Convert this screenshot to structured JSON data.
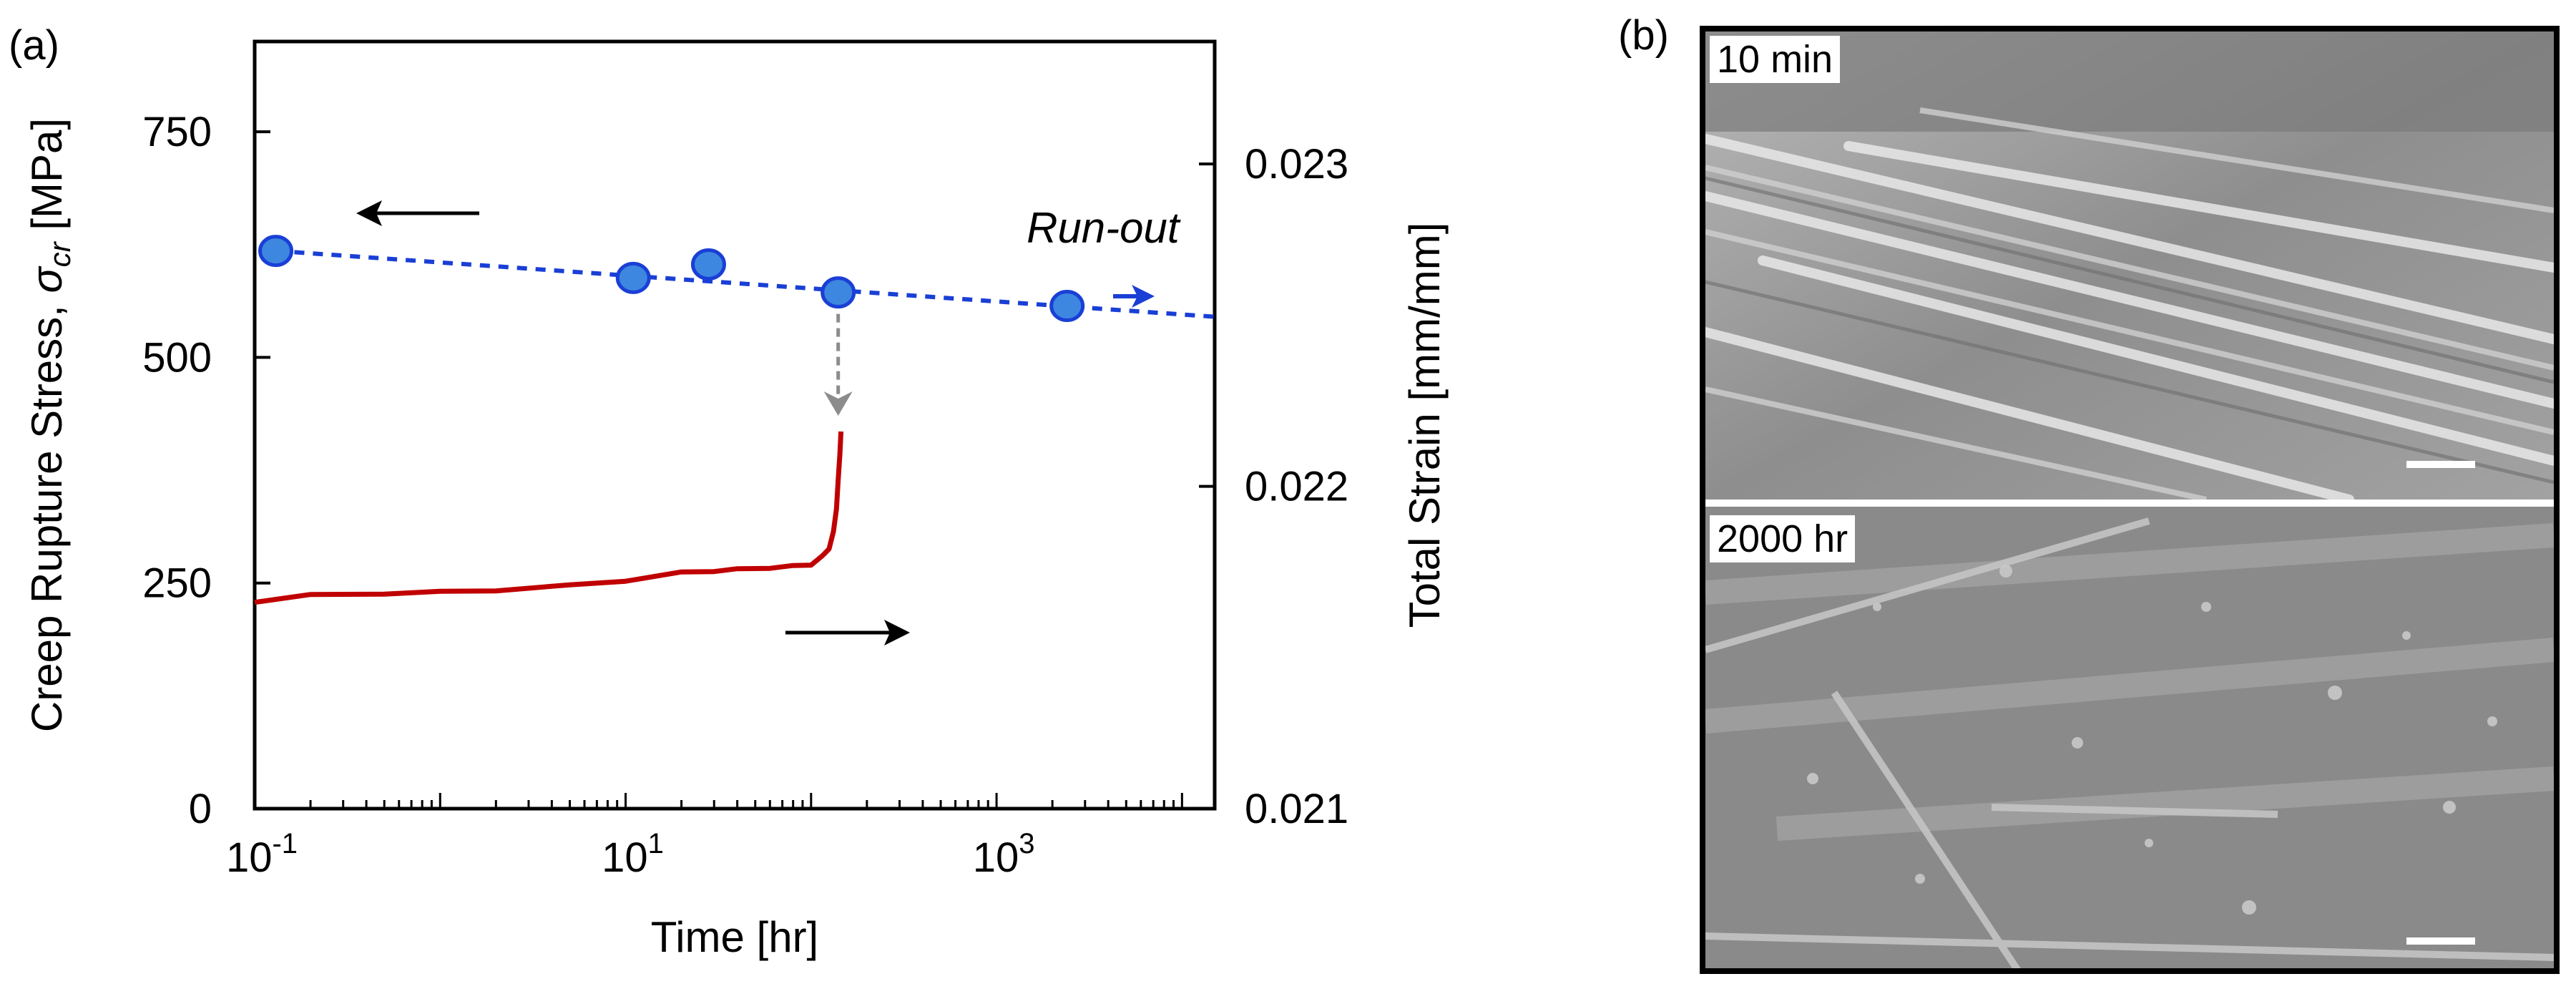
{
  "panel_a_label": "(a)",
  "panel_b_label": "(b)",
  "chart_data": {
    "type": "scatter",
    "title": "",
    "xlabel": "Time [hr]",
    "xscale": "log",
    "xlim": [
      0.1,
      15000
    ],
    "x_ticks": [
      {
        "value": 0.1,
        "base": "10",
        "exp": "-1"
      },
      {
        "value": 10,
        "base": "10",
        "exp": "1"
      },
      {
        "value": 1000,
        "base": "10",
        "exp": "3"
      }
    ],
    "ylabel_left": "Creep Rupture Stress, σcr  [MPa]",
    "ylabel_left_parts": {
      "main": "Creep Rupture Stress, ",
      "sym": "σ",
      "sub": "cr",
      "unit": "  [MPa]"
    },
    "ylim_left": [
      0,
      850
    ],
    "y_ticks_left": [
      "0",
      "250",
      "500",
      "750"
    ],
    "y_tick_values_left": [
      0,
      250,
      500,
      750
    ],
    "ylabel_right": "Total Strain [mm/mm]",
    "ylim_right": [
      0.021,
      0.02338
    ],
    "y_ticks_right": [
      "0.021",
      "0.022",
      "0.023"
    ],
    "y_tick_values_right": [
      0.021,
      0.022,
      0.023
    ],
    "stress_points": [
      {
        "x": 0.13,
        "y": 618
      },
      {
        "x": 11,
        "y": 588
      },
      {
        "x": 28,
        "y": 603
      },
      {
        "x": 140,
        "y": 572
      },
      {
        "x": 2400,
        "y": 557
      }
    ],
    "stress_fit": {
      "x": [
        0.13,
        15000
      ],
      "y": [
        618,
        545
      ],
      "style": "dashed",
      "color": "#1a3fd6"
    },
    "strain_curve": {
      "color": "#c00000",
      "x": [
        0.1,
        0.2,
        0.5,
        1,
        2,
        5,
        10,
        20,
        30,
        40,
        60,
        80,
        100,
        115,
        125,
        132,
        137,
        140,
        143,
        145
      ],
      "y": [
        0.02164,
        0.02166,
        0.02167,
        0.02167,
        0.02168,
        0.02169,
        0.02171,
        0.02173,
        0.02174,
        0.02174,
        0.02175,
        0.02175,
        0.02176,
        0.02178,
        0.02181,
        0.02186,
        0.02193,
        0.02202,
        0.0221,
        0.02217
      ]
    },
    "annotations": [
      {
        "text": "Run-out",
        "x": 2200,
        "y": 605
      }
    ],
    "colors": {
      "point_fill": "#3d87e0",
      "point_edge": "#1a3fd6",
      "arrow_gray": "#8c8c8c",
      "axis": "#000000"
    }
  },
  "sem_images": [
    {
      "label": "10 min"
    },
    {
      "label": "2000 hr"
    }
  ]
}
